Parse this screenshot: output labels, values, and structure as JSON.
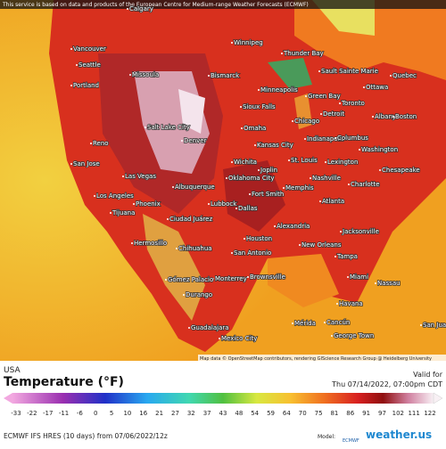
{
  "header": {
    "notice": "This service is based on data and products of the European Centre for Medium-range Weather Forecasts (ECMWF)"
  },
  "map": {
    "attribution": "Map data © OpenStreetMap contributors, rendering GIScience Research Group @ Heidelberg University",
    "cities": [
      "Calgary",
      "Winnipeg",
      "Thunder Bay",
      "Sault Sainte Marie",
      "Quebec",
      "Ottawa",
      "Vancouver",
      "Seattle",
      "Missoula",
      "Bismarck",
      "Portland",
      "Minneapolis",
      "Green Bay",
      "Toronto",
      "Albany",
      "Boston",
      "Sioux Falls",
      "Chicago",
      "Detroit",
      "Salt Lake City",
      "Omaha",
      "Indianapolis",
      "Columbus",
      "Reno",
      "Denver",
      "Kansas City",
      "Washington",
      "San Jose",
      "Wichita",
      "St. Louis",
      "Lexington",
      "Joplin",
      "Las Vegas",
      "Nashville",
      "Chesapeake",
      "Los Angeles",
      "Albuquerque",
      "Oklahoma City",
      "Memphis",
      "Charlotte",
      "Phoenix",
      "Fort Smith",
      "Tijuana",
      "Lubbock",
      "Dallas",
      "Atlanta",
      "Ciudad Juárez",
      "Houston",
      "Alexandria",
      "Jacksonville",
      "Hermosillo",
      "Chihuahua",
      "San Antonio",
      "New Orleans",
      "Tampa",
      "Monterrey",
      "Brownsville",
      "Gómez Palacio",
      "Miami",
      "Nassau",
      "Durango",
      "Havana",
      "Guadalajara",
      "Mérida",
      "Cancún",
      "Mexico City",
      "George Town",
      "San Juan"
    ]
  },
  "footer": {
    "region": "USA",
    "title": "Temperature (°F)",
    "valid_label": "Valid for",
    "valid_time": "Thu 07/14/2022, 07:00pm CDT",
    "model_run": "ECMWF IFS HRES (10 days) from 07/06/2022/12z",
    "model_label": "Model:",
    "model_name": "ECMWF",
    "brand": "weather.us",
    "scale_ticks": [
      "-33",
      "-22",
      "-17",
      "-11",
      "-6",
      "0",
      "5",
      "10",
      "16",
      "21",
      "27",
      "32",
      "37",
      "43",
      "48",
      "54",
      "59",
      "64",
      "70",
      "75",
      "81",
      "86",
      "91",
      "97",
      "102",
      "111",
      "122"
    ]
  }
}
